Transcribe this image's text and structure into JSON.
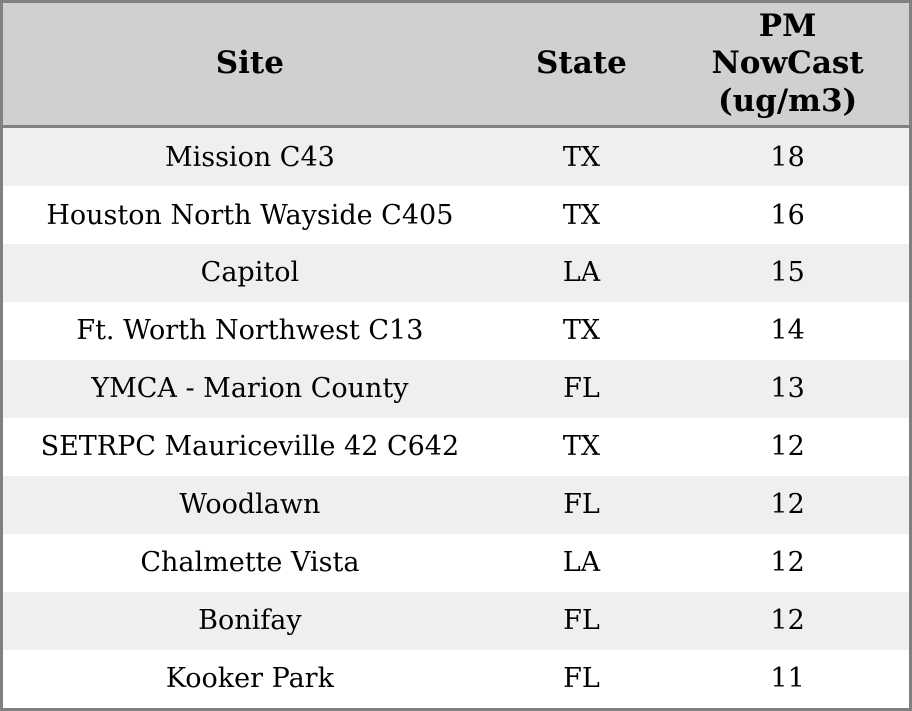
{
  "table": {
    "columns": [
      {
        "key": "site",
        "label": "Site"
      },
      {
        "key": "state",
        "label": "State"
      },
      {
        "key": "value",
        "label": "PM\nNowCast\n(ug/m3)"
      }
    ],
    "rows": [
      {
        "site": "Mission C43",
        "state": "TX",
        "value": "18"
      },
      {
        "site": "Houston North Wayside C405",
        "state": "TX",
        "value": "16"
      },
      {
        "site": "Capitol",
        "state": "LA",
        "value": "15"
      },
      {
        "site": "Ft. Worth Northwest C13",
        "state": "TX",
        "value": "14"
      },
      {
        "site": "YMCA - Marion County",
        "state": "FL",
        "value": "13"
      },
      {
        "site": "SETRPC Mauriceville 42 C642",
        "state": "TX",
        "value": "12"
      },
      {
        "site": "Woodlawn",
        "state": "FL",
        "value": "12"
      },
      {
        "site": "Chalmette Vista",
        "state": "LA",
        "value": "12"
      },
      {
        "site": "Bonifay",
        "state": "FL",
        "value": "12"
      },
      {
        "site": "Kooker Park",
        "state": "FL",
        "value": "11"
      }
    ]
  },
  "colors": {
    "header_bg": "#d0d0d0",
    "row_alt_bg": "#efefef",
    "row_bg": "#ffffff",
    "border": "#808080",
    "text": "#000000"
  },
  "chart_data": {
    "type": "table",
    "columns": [
      "Site",
      "State",
      "PM NowCast (ug/m3)"
    ],
    "rows": [
      [
        "Mission C43",
        "TX",
        18
      ],
      [
        "Houston North Wayside C405",
        "TX",
        16
      ],
      [
        "Capitol",
        "LA",
        15
      ],
      [
        "Ft. Worth Northwest C13",
        "TX",
        14
      ],
      [
        "YMCA - Marion County",
        "FL",
        13
      ],
      [
        "SETRPC Mauriceville 42 C642",
        "TX",
        12
      ],
      [
        "Woodlawn",
        "FL",
        12
      ],
      [
        "Chalmette Vista",
        "LA",
        12
      ],
      [
        "Bonifay",
        "FL",
        12
      ],
      [
        "Kooker Park",
        "FL",
        11
      ]
    ],
    "title": "",
    "notes": "Sites ranked by PM NowCast concentration, alternating-striped table, no vertical gridlines"
  }
}
